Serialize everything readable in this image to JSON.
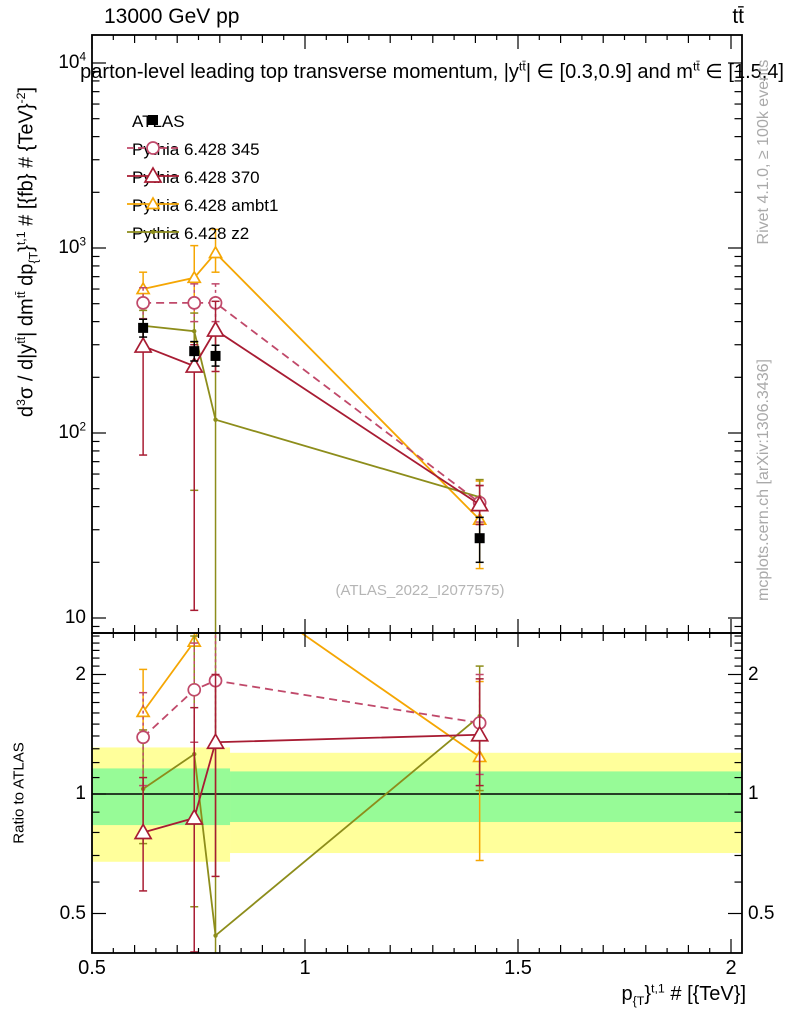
{
  "header": {
    "beam_label": "13000 GeV pp",
    "process_label": "tt̄"
  },
  "plot_title": {
    "full": "parton-level leading top transverse momentum, |y^tt| ∈ [0.3,0.9] and m^tt ∈ [1.5,4]",
    "parts": [
      {
        "t": "parton-level leading top transverse momentum, |y"
      },
      {
        "sup": "tt̄"
      },
      {
        "t": "| ∈ [0.3,0.9] and m"
      },
      {
        "sup": "tt̄"
      },
      {
        "t": " ∈ [1.5,4]"
      }
    ]
  },
  "axis": {
    "y_label_full": "d3σ / d|y^tt| dm^tt dp_{T}^t,1 # [{fb} # {TeV}^-2]",
    "y_label_parts": [
      {
        "t": "d"
      },
      {
        "sup": "3"
      },
      {
        "t": "σ / d|y"
      },
      {
        "sup": "tt̄"
      },
      {
        "t": "| dm"
      },
      {
        "sup": "tt̄"
      },
      {
        "t": " dp"
      },
      {
        "sub": "{T"
      },
      {
        "t": "}"
      },
      {
        "sup": "t,1"
      },
      {
        "t": " # [{fb} # {TeV}"
      },
      {
        "sup": "-2"
      },
      {
        "t": "]"
      }
    ],
    "x_label_full": "p_{T}^t,1 # [{TeV}]",
    "x_label_parts": [
      {
        "t": "p"
      },
      {
        "sub": "{T"
      },
      {
        "t": "}"
      },
      {
        "sup": "t,1"
      },
      {
        "t": " # [{TeV}]"
      }
    ],
    "ratio_label": "Ratio to ATLAS",
    "main_yticks": [
      {
        "v": 10000,
        "base": "10",
        "sup": "4"
      },
      {
        "v": 1000,
        "base": "10",
        "sup": "3"
      },
      {
        "v": 100,
        "base": "10",
        "sup": "2"
      },
      {
        "v": 10,
        "base": "10",
        "sup": ""
      }
    ],
    "ratio_yticks": [
      {
        "v": 2,
        "label": "2"
      },
      {
        "v": 1,
        "label": "1"
      },
      {
        "v": 0.5,
        "label": "0.5"
      }
    ],
    "xticks": [
      {
        "v": 0.5,
        "label": "0.5"
      },
      {
        "v": 1,
        "label": "1"
      },
      {
        "v": 1.5,
        "label": "1.5"
      },
      {
        "v": 2,
        "label": "2"
      }
    ]
  },
  "side_labels": {
    "rivet": "Rivet 4.1.0, ≥ 100k events",
    "mcplots": "mcplots.cern.ch [arXiv:1306.3436]"
  },
  "watermark": "(ATLAS_2022_I2077575)",
  "colors": {
    "atlas": "#000000",
    "pythia_345": "#c0496a",
    "pythia_370": "#a81c33",
    "pythia_ambt1": "#f5a603",
    "pythia_z2": "#8d8d1b",
    "band_yellow": "#ffff9b",
    "band_green": "#97fb97",
    "gray_text": "#a9a9a9"
  },
  "chart_data": [
    {
      "type": "scatter",
      "panel": "main",
      "title": "parton-level leading top transverse momentum, |y^tt| in [0.3,0.9] and m^tt in [1.5,4]",
      "xlabel": "p_T^t,1 [TeV]",
      "ylabel": "d3σ / d|y^tt| dm^tt dp_T^t,1 [fb/TeV^2]",
      "xscale": "linear",
      "yscale": "log",
      "xlim": [
        0.5,
        2.026
      ],
      "ylim": [
        8.3,
        14200
      ],
      "x": [
        0.62,
        0.74,
        0.79,
        1.41
      ],
      "series": [
        {
          "name": "ATLAS",
          "color": "#000000",
          "marker": "square",
          "line": "none",
          "y": [
            370,
            277,
            261,
            27
          ],
          "err_lo": [
            330,
            245,
            230,
            20
          ],
          "err_hi": [
            412,
            312,
            298,
            35
          ]
        },
        {
          "name": "Pythia 6.428 345",
          "color": "#c0496a",
          "marker": "circle",
          "line": "dashed",
          "y": [
            505,
            505,
            505,
            42
          ],
          "err_lo": [
            415,
            400,
            400,
            33
          ],
          "err_hi": [
            610,
            640,
            640,
            52
          ]
        },
        {
          "name": "Pythia 6.428 370",
          "color": "#a81c33",
          "marker": "triangle",
          "line": "solid",
          "y": [
            295,
            230,
            360,
            41
          ],
          "err_lo": [
            76,
            11,
            215,
            32
          ],
          "err_hi": [
            360,
            300,
            515,
            52
          ]
        },
        {
          "name": "Pythia 6.428 ambt1",
          "color": "#f5a603",
          "marker": "triangle-small",
          "line": "solid",
          "y": [
            600,
            690,
            940,
            34
          ],
          "err_lo": [
            480,
            310,
            740,
            18.5
          ],
          "err_hi": [
            740,
            1030,
            1260,
            55
          ]
        },
        {
          "name": "Pythia 6.428 z2",
          "color": "#8d8d1b",
          "marker": "dot",
          "line": "solid",
          "y": [
            380,
            355,
            118,
            45
          ],
          "err_lo": [
            290,
            49,
            8,
            35
          ],
          "err_hi": [
            460,
            445,
            360,
            56
          ]
        }
      ],
      "ytick_values": [
        10,
        100,
        1000,
        10000
      ],
      "xtick_values": [
        0.5,
        1,
        1.5,
        2
      ]
    },
    {
      "type": "ratio",
      "panel": "ratio",
      "ylabel": "Ratio to ATLAS",
      "xscale": "linear",
      "yscale": "log2",
      "xlim": [
        0.5,
        2.026
      ],
      "ylim": [
        0.396,
        2.56
      ],
      "reference": 1,
      "bands": [
        {
          "x0": 0.5,
          "x1": 0.824,
          "yellow": [
            0.675,
            1.31
          ],
          "green": [
            0.835,
            1.16
          ]
        },
        {
          "x0": 0.824,
          "x1": 2.026,
          "yellow": [
            0.71,
            1.27
          ],
          "green": [
            0.85,
            1.14
          ]
        }
      ],
      "x": [
        0.62,
        0.74,
        0.79,
        1.41
      ],
      "series": [
        {
          "name": "Pythia 6.428 345",
          "color": "#c0496a",
          "marker": "circle",
          "line": "dashed",
          "y": [
            1.39,
            1.83,
            1.93,
            1.51
          ],
          "err_lo": [
            1.05,
            1.35,
            1.35,
            1.12
          ],
          "err_hi": [
            1.8,
            2.4,
            2.6,
            2.0
          ]
        },
        {
          "name": "Pythia 6.428 370",
          "color": "#a81c33",
          "marker": "triangle",
          "line": "solid",
          "y": [
            0.8,
            0.87,
            1.35,
            1.41
          ],
          "err_lo": [
            0.57,
            0.4,
            0.62,
            1.05
          ],
          "err_hi": [
            1.1,
            1.65,
            2.0,
            1.95
          ]
        },
        {
          "name": "Pythia 6.428 ambt1",
          "color": "#f5a603",
          "marker": "triangle-small",
          "line": "solid",
          "y": [
            1.61,
            2.42,
            3.6,
            1.24
          ],
          "err_lo": [
            1.37,
            1.8,
            3.0,
            0.68
          ],
          "err_hi": [
            2.06,
            2.6,
            4.2,
            1.92
          ]
        },
        {
          "name": "Pythia 6.428 z2",
          "color": "#8d8d1b",
          "marker": "dot",
          "line": "solid",
          "y": [
            1.03,
            1.26,
            0.44,
            1.57
          ],
          "err_lo": [
            0.75,
            0.52,
            0.38,
            1.02
          ],
          "err_hi": [
            1.45,
            2.5,
            2.6,
            2.1
          ]
        }
      ],
      "ytick_values": [
        0.5,
        1,
        2
      ],
      "xtick_values": [
        0.5,
        1,
        1.5,
        2
      ]
    }
  ]
}
